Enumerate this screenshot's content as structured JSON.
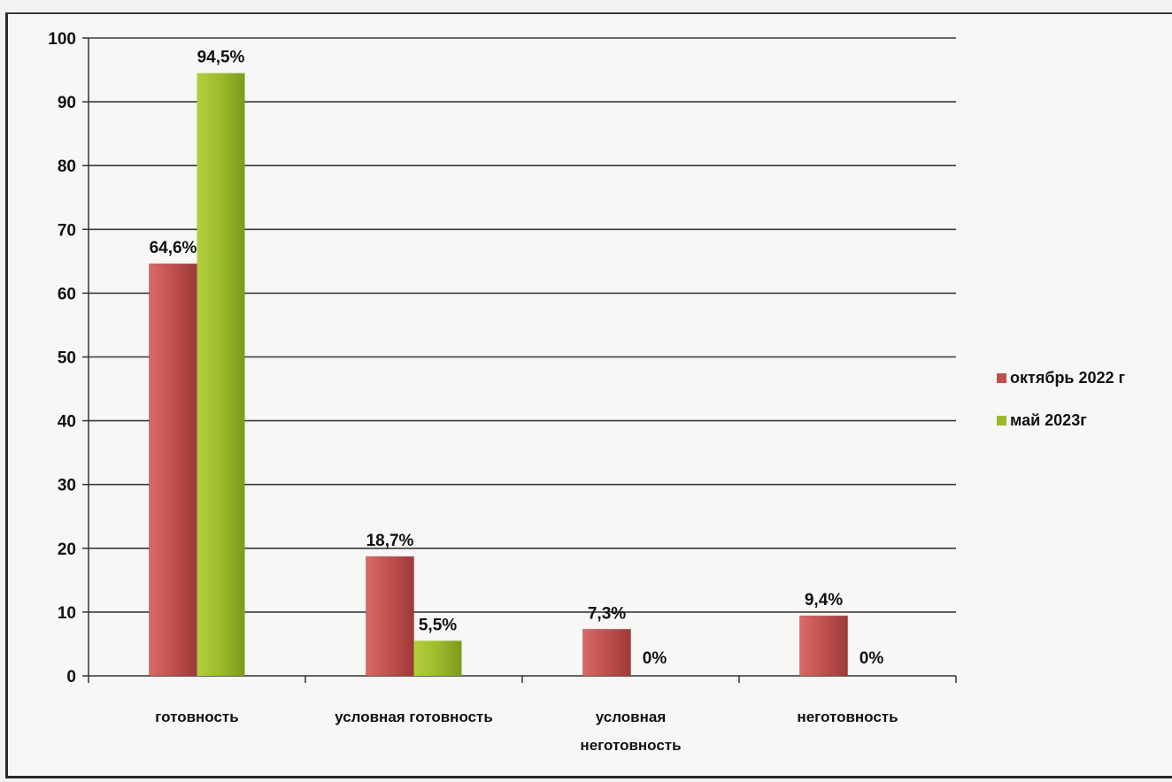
{
  "chart_data": {
    "type": "bar",
    "categories": [
      "готовность",
      "условная готовность",
      "условная неготовность",
      "неготовность"
    ],
    "category_lines": [
      [
        "готовность"
      ],
      [
        "условная готовность"
      ],
      [
        "условная",
        "неготовность"
      ],
      [
        "неготовность"
      ]
    ],
    "series": [
      {
        "name": "октябрь 2022 г",
        "color": "#c0504d",
        "values": [
          64.6,
          18.7,
          7.3,
          9.4
        ],
        "labels": [
          "64,6%",
          "18,7%",
          "7,3%",
          "9,4%"
        ]
      },
      {
        "name": "май 2023г",
        "color": "#9bbb2a",
        "values": [
          94.5,
          5.5,
          0,
          0
        ],
        "labels": [
          "94,5%",
          "5,5%",
          "0%",
          "0%"
        ]
      }
    ],
    "ylim": [
      0,
      100
    ],
    "yticks": [
      "0",
      "10",
      "20",
      "30",
      "40",
      "50",
      "60",
      "70",
      "80",
      "90",
      "100"
    ],
    "grid": true,
    "legend": "right"
  }
}
